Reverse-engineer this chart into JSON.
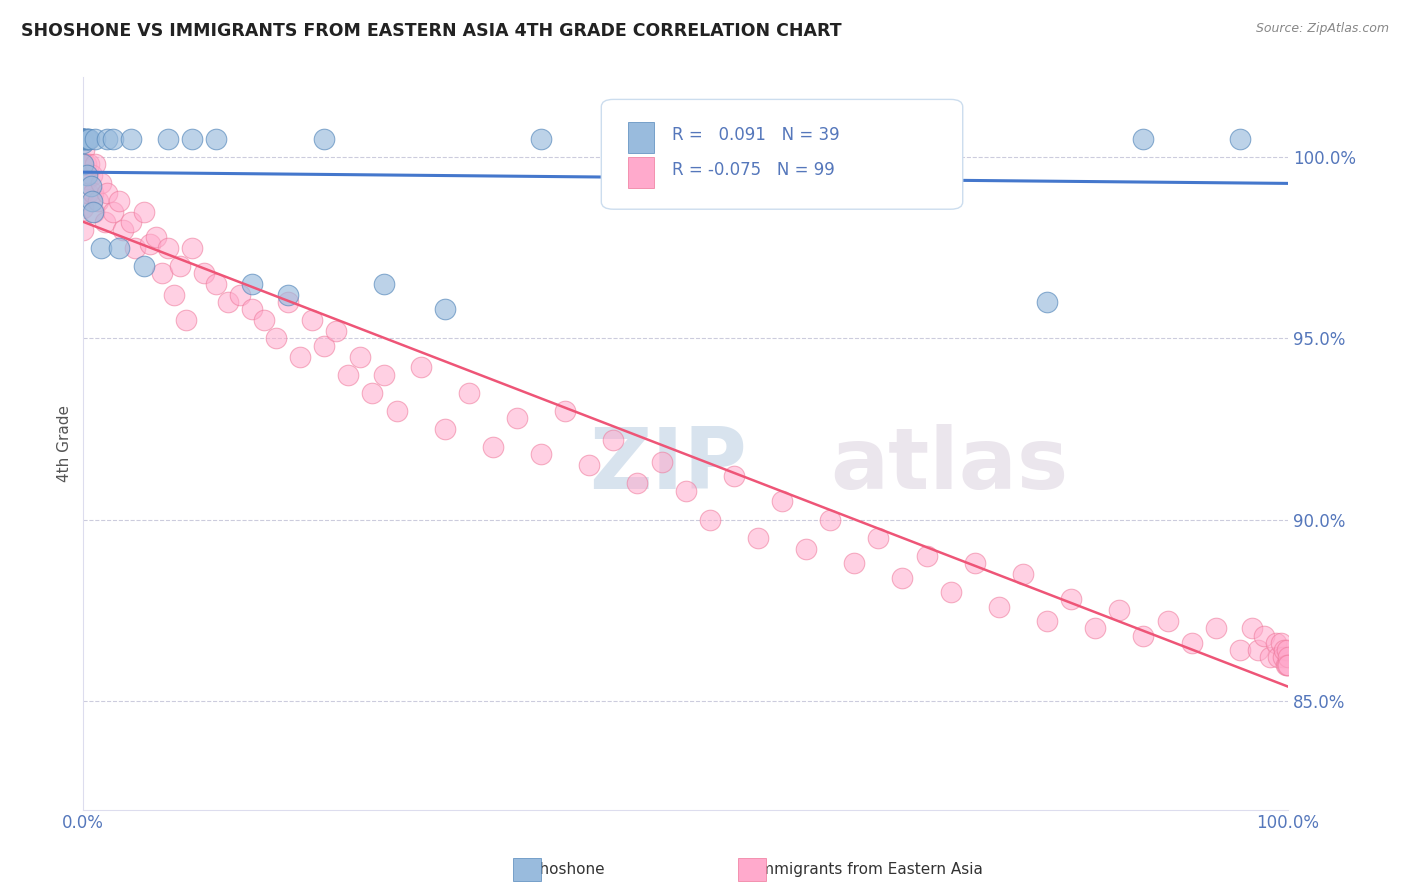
{
  "title": "SHOSHONE VS IMMIGRANTS FROM EASTERN ASIA 4TH GRADE CORRELATION CHART",
  "source_text": "Source: ZipAtlas.com",
  "ylabel": "4th Grade",
  "xlim": [
    0.0,
    1.0
  ],
  "ylim": [
    0.82,
    1.022
  ],
  "yticks": [
    0.85,
    0.9,
    0.95,
    1.0
  ],
  "ytick_labels": [
    "85.0%",
    "90.0%",
    "95.0%",
    "100.0%"
  ],
  "xticks": [
    0.0,
    0.25,
    0.5,
    0.75,
    1.0
  ],
  "xtick_labels": [
    "0.0%",
    "",
    "",
    "",
    "100.0%"
  ],
  "blue_R": 0.091,
  "blue_N": 39,
  "pink_R": -0.075,
  "pink_N": 99,
  "blue_color": "#99BBDD",
  "pink_color": "#FFAACC",
  "blue_edge_color": "#5588BB",
  "pink_edge_color": "#EE7799",
  "blue_line_color": "#4477CC",
  "pink_line_color": "#EE5577",
  "grid_color": "#CCCCDD",
  "title_color": "#222222",
  "axis_color": "#5577BB",
  "watermark_zip": "ZIP",
  "watermark_atlas": "atlas",
  "legend_label_blue": "Shoshone",
  "legend_label_pink": "Immigrants from Eastern Asia",
  "blue_scatter_x": [
    0.0,
    0.0,
    0.0,
    0.0,
    0.0,
    0.0,
    0.0,
    0.0,
    0.002,
    0.003,
    0.003,
    0.004,
    0.005,
    0.006,
    0.007,
    0.008,
    0.01,
    0.015,
    0.02,
    0.025,
    0.03,
    0.04,
    0.05,
    0.07,
    0.09,
    0.11,
    0.14,
    0.17,
    0.2,
    0.25,
    0.3,
    0.38,
    0.46,
    0.55,
    0.64,
    0.72,
    0.8,
    0.88,
    0.96
  ],
  "blue_scatter_y": [
    1.005,
    1.005,
    1.005,
    1.005,
    1.005,
    1.005,
    1.004,
    0.998,
    1.005,
    1.005,
    0.995,
    1.005,
    1.005,
    0.992,
    0.988,
    0.985,
    1.005,
    0.975,
    1.005,
    1.005,
    0.975,
    1.005,
    0.97,
    1.005,
    1.005,
    1.005,
    0.965,
    0.962,
    1.005,
    0.965,
    0.958,
    1.005,
    1.005,
    1.005,
    1.005,
    1.005,
    0.96,
    1.005,
    1.005
  ],
  "pink_scatter_x": [
    0.0,
    0.0,
    0.0,
    0.0,
    0.0,
    0.0,
    0.001,
    0.002,
    0.003,
    0.004,
    0.005,
    0.007,
    0.008,
    0.009,
    0.01,
    0.012,
    0.015,
    0.018,
    0.02,
    0.025,
    0.03,
    0.033,
    0.04,
    0.043,
    0.05,
    0.055,
    0.06,
    0.065,
    0.07,
    0.075,
    0.08,
    0.085,
    0.09,
    0.1,
    0.11,
    0.12,
    0.13,
    0.14,
    0.15,
    0.16,
    0.17,
    0.18,
    0.19,
    0.2,
    0.21,
    0.22,
    0.23,
    0.24,
    0.25,
    0.26,
    0.28,
    0.3,
    0.32,
    0.34,
    0.36,
    0.38,
    0.4,
    0.42,
    0.44,
    0.46,
    0.48,
    0.5,
    0.52,
    0.54,
    0.56,
    0.58,
    0.6,
    0.62,
    0.64,
    0.66,
    0.68,
    0.7,
    0.72,
    0.74,
    0.76,
    0.78,
    0.8,
    0.82,
    0.84,
    0.86,
    0.88,
    0.9,
    0.92,
    0.94,
    0.96,
    0.97,
    0.975,
    0.98,
    0.985,
    0.99,
    0.992,
    0.994,
    0.996,
    0.997,
    0.998,
    0.999,
    0.9995,
    0.9998,
    1.0
  ],
  "pink_scatter_y": [
    1.005,
    0.998,
    0.994,
    0.99,
    0.986,
    0.98,
    1.002,
    0.998,
    0.994,
    0.99,
    0.998,
    0.995,
    0.99,
    0.985,
    0.998,
    0.988,
    0.993,
    0.982,
    0.99,
    0.985,
    0.988,
    0.98,
    0.982,
    0.975,
    0.985,
    0.976,
    0.978,
    0.968,
    0.975,
    0.962,
    0.97,
    0.955,
    0.975,
    0.968,
    0.965,
    0.96,
    0.962,
    0.958,
    0.955,
    0.95,
    0.96,
    0.945,
    0.955,
    0.948,
    0.952,
    0.94,
    0.945,
    0.935,
    0.94,
    0.93,
    0.942,
    0.925,
    0.935,
    0.92,
    0.928,
    0.918,
    0.93,
    0.915,
    0.922,
    0.91,
    0.916,
    0.908,
    0.9,
    0.912,
    0.895,
    0.905,
    0.892,
    0.9,
    0.888,
    0.895,
    0.884,
    0.89,
    0.88,
    0.888,
    0.876,
    0.885,
    0.872,
    0.878,
    0.87,
    0.875,
    0.868,
    0.872,
    0.866,
    0.87,
    0.864,
    0.87,
    0.864,
    0.868,
    0.862,
    0.866,
    0.862,
    0.866,
    0.862,
    0.864,
    0.86,
    0.864,
    0.86,
    0.862,
    0.86
  ]
}
